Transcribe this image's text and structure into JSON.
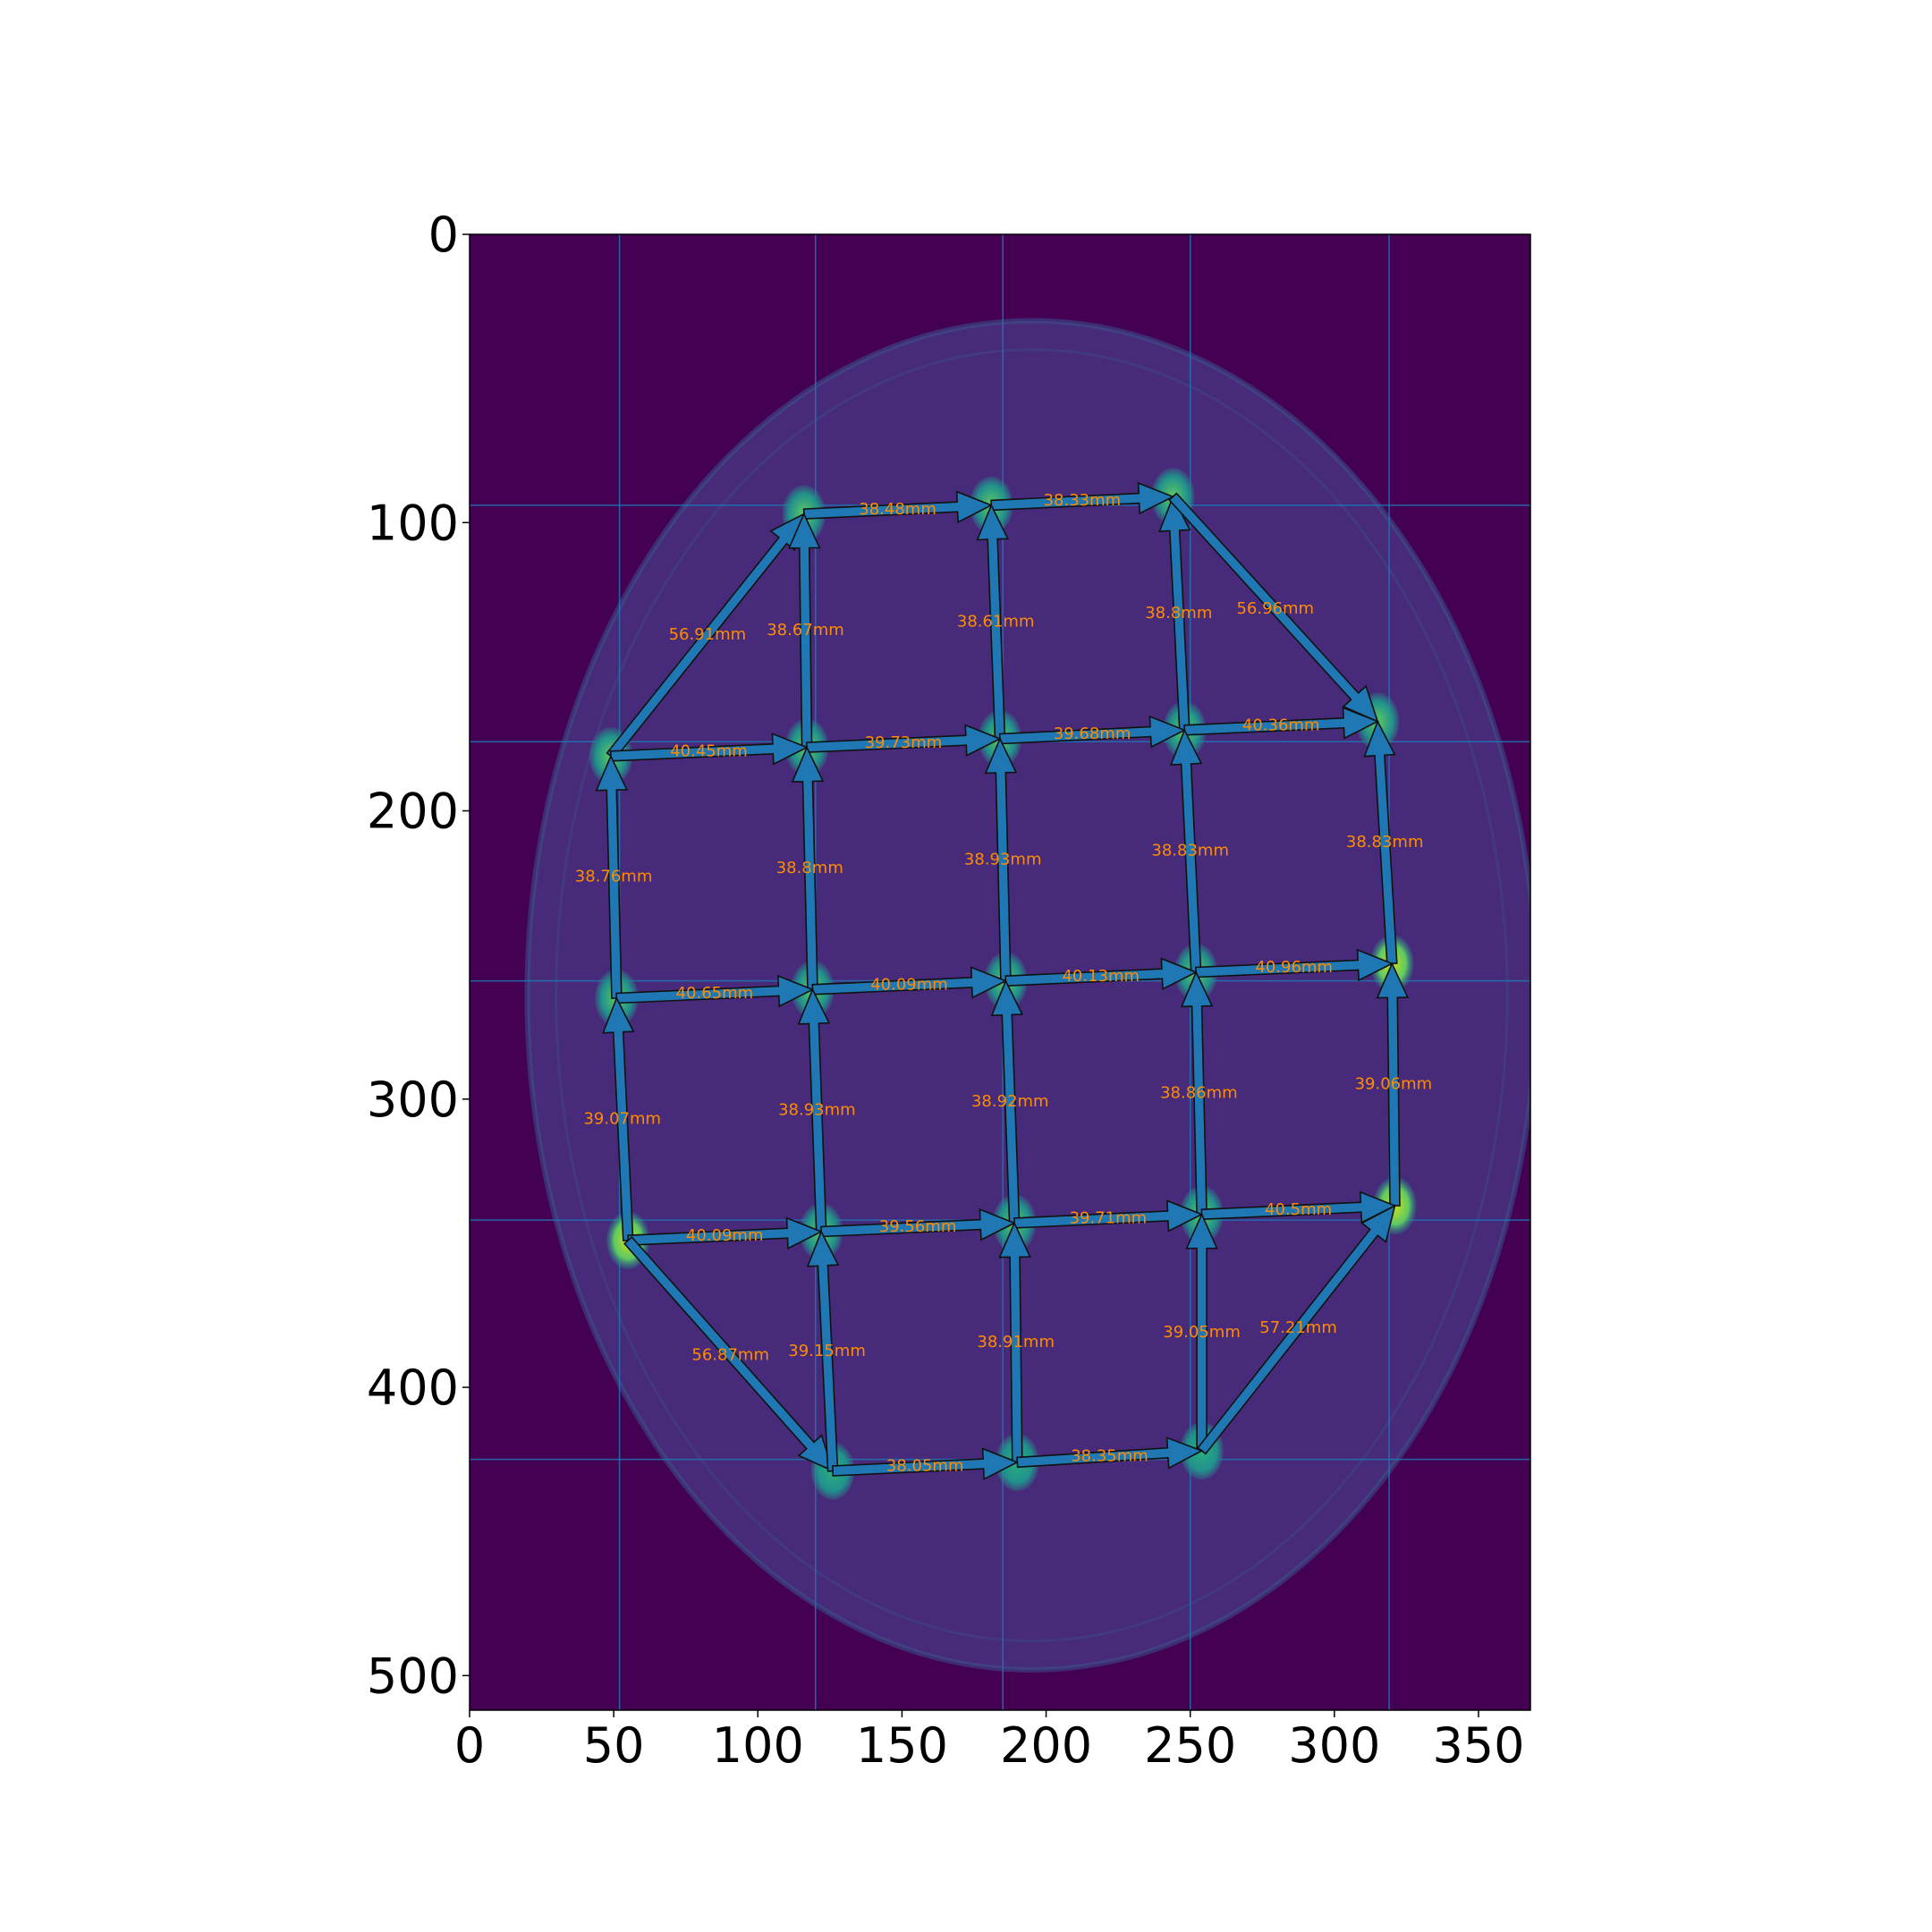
{
  "colors": {
    "background": "#440154",
    "phantom": "#472b7a",
    "ring": "#3b528b",
    "marker_bright": "#c8e020",
    "marker_mid": "#5ec962",
    "marker_dim": "#21918c",
    "arrow": "#1f77b4",
    "label": "#ff8c00",
    "grid": "#1f77b4"
  },
  "chart_data": {
    "type": "image-annotation",
    "title": "",
    "xlabel": "",
    "ylabel": "",
    "xlim": [
      0,
      368
    ],
    "ylim": [
      512,
      0
    ],
    "xticks": [
      0,
      50,
      100,
      150,
      200,
      250,
      300,
      350
    ],
    "yticks": [
      0,
      100,
      200,
      300,
      400,
      500
    ],
    "grid": {
      "x": [
        52,
        120,
        185,
        250,
        319
      ],
      "y": [
        94,
        176,
        259,
        342,
        425
      ]
    },
    "phantom": {
      "cx": 195,
      "cy": 264,
      "rx": 175,
      "ry": 234
    },
    "markers": [
      {
        "id": "A2",
        "x": 116,
        "y": 97,
        "level": "mid"
      },
      {
        "id": "A3",
        "x": 181,
        "y": 94,
        "level": "mid"
      },
      {
        "id": "A4",
        "x": 244,
        "y": 91,
        "level": "mid"
      },
      {
        "id": "B1",
        "x": 49,
        "y": 181,
        "level": "mid"
      },
      {
        "id": "B2",
        "x": 117,
        "y": 178,
        "level": "mid"
      },
      {
        "id": "B3",
        "x": 184,
        "y": 175,
        "level": "mid"
      },
      {
        "id": "B4",
        "x": 248,
        "y": 172,
        "level": "mid"
      },
      {
        "id": "B5",
        "x": 315,
        "y": 169,
        "level": "mid"
      },
      {
        "id": "C1",
        "x": 51,
        "y": 265,
        "level": "mid"
      },
      {
        "id": "C2",
        "x": 119,
        "y": 262,
        "level": "mid"
      },
      {
        "id": "C3",
        "x": 186,
        "y": 259,
        "level": "mid"
      },
      {
        "id": "C4",
        "x": 252,
        "y": 256,
        "level": "mid"
      },
      {
        "id": "C5",
        "x": 320,
        "y": 253,
        "level": "bright"
      },
      {
        "id": "D1",
        "x": 55,
        "y": 349,
        "level": "bright"
      },
      {
        "id": "D2",
        "x": 122,
        "y": 346,
        "level": "mid"
      },
      {
        "id": "D3",
        "x": 189,
        "y": 343,
        "level": "mid"
      },
      {
        "id": "D4",
        "x": 254,
        "y": 340,
        "level": "mid"
      },
      {
        "id": "D5",
        "x": 321,
        "y": 337,
        "level": "bright"
      },
      {
        "id": "E2",
        "x": 126,
        "y": 429,
        "level": "dim"
      },
      {
        "id": "E3",
        "x": 190,
        "y": 426,
        "level": "dim"
      },
      {
        "id": "E4",
        "x": 254,
        "y": 422,
        "level": "dim"
      }
    ],
    "segments": [
      {
        "from": "A2",
        "to": "A3",
        "label": "38.48mm"
      },
      {
        "from": "A3",
        "to": "A4",
        "label": "38.33mm"
      },
      {
        "from": "B1",
        "to": "A2",
        "label": "56.91mm"
      },
      {
        "from": "B2",
        "to": "A2",
        "label": "38.67mm"
      },
      {
        "from": "B3",
        "to": "A3",
        "label": "38.61mm"
      },
      {
        "from": "B4",
        "to": "A4",
        "label": "38.8mm"
      },
      {
        "from": "A4",
        "to": "B5",
        "label": "56.96mm"
      },
      {
        "from": "B1",
        "to": "B2",
        "label": "40.45mm"
      },
      {
        "from": "B2",
        "to": "B3",
        "label": "39.73mm"
      },
      {
        "from": "B3",
        "to": "B4",
        "label": "39.68mm"
      },
      {
        "from": "B4",
        "to": "B5",
        "label": "40.36mm"
      },
      {
        "from": "C1",
        "to": "B1",
        "label": "38.76mm"
      },
      {
        "from": "C2",
        "to": "B2",
        "label": "38.8mm"
      },
      {
        "from": "C3",
        "to": "B3",
        "label": "38.93mm"
      },
      {
        "from": "C4",
        "to": "B4",
        "label": "38.83mm"
      },
      {
        "from": "C5",
        "to": "B5",
        "label": "38.83mm"
      },
      {
        "from": "C1",
        "to": "C2",
        "label": "40.65mm"
      },
      {
        "from": "C2",
        "to": "C3",
        "label": "40.09mm"
      },
      {
        "from": "C3",
        "to": "C4",
        "label": "40.13mm"
      },
      {
        "from": "C4",
        "to": "C5",
        "label": "40.96mm"
      },
      {
        "from": "D1",
        "to": "C1",
        "label": "39.07mm"
      },
      {
        "from": "D2",
        "to": "C2",
        "label": "38.93mm"
      },
      {
        "from": "D3",
        "to": "C3",
        "label": "38.92mm"
      },
      {
        "from": "D4",
        "to": "C4",
        "label": "38.86mm"
      },
      {
        "from": "D5",
        "to": "C5",
        "label": "39.06mm"
      },
      {
        "from": "D1",
        "to": "D2",
        "label": "40.09mm"
      },
      {
        "from": "D2",
        "to": "D3",
        "label": "39.56mm"
      },
      {
        "from": "D3",
        "to": "D4",
        "label": "39.71mm"
      },
      {
        "from": "D4",
        "to": "D5",
        "label": "40.5mm"
      },
      {
        "from": "D1",
        "to": "E2",
        "label": "56.87mm"
      },
      {
        "from": "E2",
        "to": "D2",
        "label": "39.15mm"
      },
      {
        "from": "E3",
        "to": "D3",
        "label": "38.91mm"
      },
      {
        "from": "E4",
        "to": "D4",
        "label": "39.05mm"
      },
      {
        "from": "E4",
        "to": "D5",
        "label": "57.21mm"
      },
      {
        "from": "E2",
        "to": "E3",
        "label": "38.05mm"
      },
      {
        "from": "E3",
        "to": "E4",
        "label": "38.35mm"
      }
    ]
  }
}
